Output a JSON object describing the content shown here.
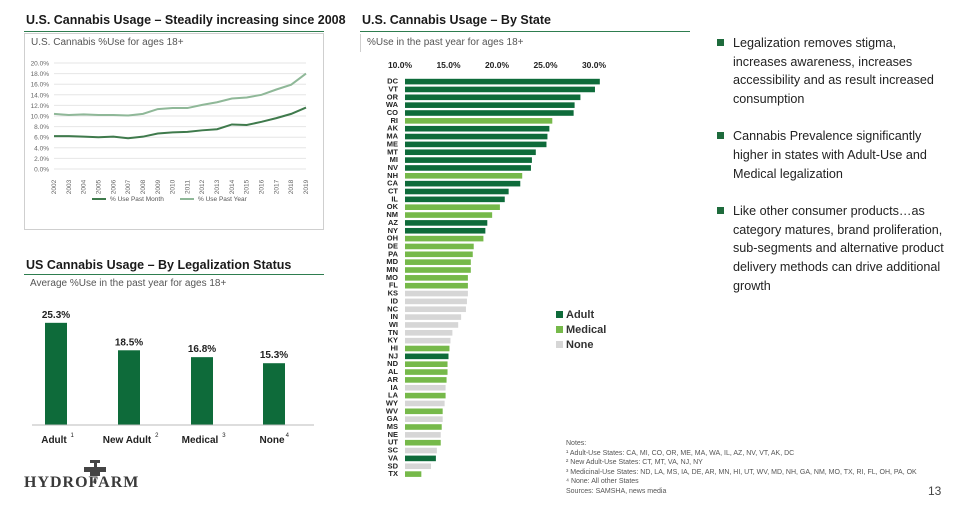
{
  "colors": {
    "adult": "#0e6b3a",
    "medical": "#76b94a",
    "none": "#d6d6d6",
    "line_past_month": "#3f7a4c",
    "line_past_year": "#8fb898",
    "title_rule": "#2e7d4f"
  },
  "chart1": {
    "title": "U.S. Cannabis Usage – Steadily increasing since 2008",
    "subtitle": "U.S. Cannabis %Use for ages 18+",
    "y_ticks": [
      "0.0%",
      "2.0%",
      "4.0%",
      "6.0%",
      "8.0%",
      "10.0%",
      "12.0%",
      "14.0%",
      "16.0%",
      "18.0%",
      "20.0%"
    ],
    "legend": [
      "% Use Past  Month",
      "% Use Past Year"
    ]
  },
  "chart2": {
    "title": "US Cannabis Usage – By Legalization Status",
    "subtitle": "Average %Use in the past year for ages 18+",
    "value_labels": [
      "25.3%",
      "18.5%",
      "16.8%",
      "15.3%"
    ],
    "category_labels": [
      "Adult",
      "New Adult",
      "Medical",
      "None"
    ],
    "superscripts": [
      "1",
      "2",
      "3",
      "4"
    ]
  },
  "chart3": {
    "title": "U.S. Cannabis Usage – By State",
    "subtitle": "%Use in the past year for ages 18+",
    "tick_labels": [
      "10.0%",
      "15.0%",
      "20.0%",
      "25.0%",
      "30.0%"
    ],
    "legend": [
      "Adult",
      "Medical",
      "None"
    ]
  },
  "chart_data": [
    {
      "type": "line",
      "title": "U.S. Cannabis Usage – Steadily increasing since 2008",
      "subtitle": "U.S. Cannabis %Use for ages 18+",
      "x": [
        "2002",
        "2003",
        "2004",
        "2005",
        "2006",
        "2007",
        "2008",
        "2009",
        "2010",
        "2011",
        "2012",
        "2013",
        "2014",
        "2015",
        "2016",
        "2017",
        "2018",
        "2019"
      ],
      "ylim": [
        0,
        20
      ],
      "series": [
        {
          "name": "% Use Past  Month",
          "values": [
            6.2,
            6.2,
            6.1,
            6.0,
            6.1,
            5.8,
            6.1,
            6.7,
            6.9,
            7.0,
            7.3,
            7.5,
            8.4,
            8.3,
            8.9,
            9.6,
            10.4,
            11.6
          ]
        },
        {
          "name": "% Use Past Year",
          "values": [
            10.4,
            10.2,
            10.3,
            10.2,
            10.2,
            10.1,
            10.4,
            11.3,
            11.5,
            11.5,
            12.1,
            12.6,
            13.3,
            13.5,
            14.0,
            15.0,
            15.9,
            18.0
          ]
        }
      ],
      "grid": true,
      "legend_position": "bottom"
    },
    {
      "type": "bar",
      "title": "US Cannabis Usage – By Legalization Status",
      "subtitle": "Average %Use in the past year for ages 18+",
      "categories": [
        "Adult",
        "New Adult",
        "Medical",
        "None"
      ],
      "values": [
        25.3,
        18.5,
        16.8,
        15.3
      ]
    },
    {
      "type": "bar",
      "orientation": "horizontal",
      "title": "U.S. Cannabis Usage – By State",
      "subtitle": "%Use in the past year for ages 18+",
      "xlim": [
        10,
        30
      ],
      "categories": [
        "DC",
        "VT",
        "OR",
        "WA",
        "CO",
        "RI",
        "AK",
        "MA",
        "ME",
        "MT",
        "MI",
        "NV",
        "NH",
        "CA",
        "CT",
        "IL",
        "OK",
        "NM",
        "AZ",
        "NY",
        "OH",
        "DE",
        "PA",
        "MD",
        "MN",
        "MO",
        "FL",
        "KS",
        "ID",
        "NC",
        "IN",
        "WI",
        "TN",
        "KY",
        "HI",
        "NJ",
        "ND",
        "AL",
        "AR",
        "IA",
        "LA",
        "WY",
        "WV",
        "GA",
        "MS",
        "NE",
        "UT",
        "SC",
        "VA",
        "SD",
        "TX"
      ],
      "values": [
        30.6,
        30.1,
        28.6,
        28.0,
        27.9,
        25.7,
        25.4,
        25.2,
        25.1,
        24.0,
        23.6,
        23.5,
        22.6,
        22.4,
        21.2,
        20.8,
        20.3,
        19.5,
        19.0,
        18.8,
        18.6,
        17.6,
        17.5,
        17.3,
        17.3,
        17.0,
        17.0,
        17.0,
        16.9,
        16.8,
        16.3,
        16.0,
        15.4,
        15.2,
        15.1,
        15.0,
        14.9,
        14.9,
        14.8,
        14.7,
        14.7,
        14.6,
        14.4,
        14.4,
        14.3,
        14.2,
        14.2,
        13.8,
        13.7,
        13.2,
        12.2
      ],
      "status": [
        "Adult",
        "Adult",
        "Adult",
        "Adult",
        "Adult",
        "Medical",
        "Adult",
        "Adult",
        "Adult",
        "Adult",
        "Adult",
        "Adult",
        "Medical",
        "Adult",
        "Adult",
        "Adult",
        "Medical",
        "Medical",
        "Adult",
        "Adult",
        "Medical",
        "Medical",
        "Medical",
        "Medical",
        "Medical",
        "Medical",
        "Medical",
        "None",
        "None",
        "None",
        "None",
        "None",
        "None",
        "None",
        "Medical",
        "Adult",
        "Medical",
        "Medical",
        "Medical",
        "None",
        "Medical",
        "None",
        "Medical",
        "None",
        "Medical",
        "None",
        "Medical",
        "None",
        "Adult",
        "None",
        "Medical"
      ],
      "legend": [
        "Adult",
        "Medical",
        "None"
      ],
      "legend_position": "right"
    }
  ],
  "bullets": [
    "Legalization removes stigma, increases awareness, increases accessibility and as result increased consumption",
    "Cannabis Prevalence significantly higher in states with Adult-Use and Medical legalization",
    "Like other consumer products…as category matures, brand proliferation, sub-segments and alternative product delivery methods can drive additional growth"
  ],
  "notes": {
    "heading": "Notes:",
    "lines": [
      "¹ Adult-Use States: CA, MI, CO, OR, ME, MA, WA, IL, AZ, NV, VT, AK, DC",
      "² New Adult-Use States: CT, MT, VA, NJ, NY",
      "³ Medicinal-Use States: ND, LA, MS, IA, DE, AR, MN, HI, UT, WV, MD, NH, GA, NM, MO, TX, RI, FL, OH, PA, OK",
      "⁴ None: All other States",
      "Sources: SAMSHA, news media"
    ]
  },
  "logo": {
    "text": "HYDROFARM"
  },
  "page_number": "13"
}
